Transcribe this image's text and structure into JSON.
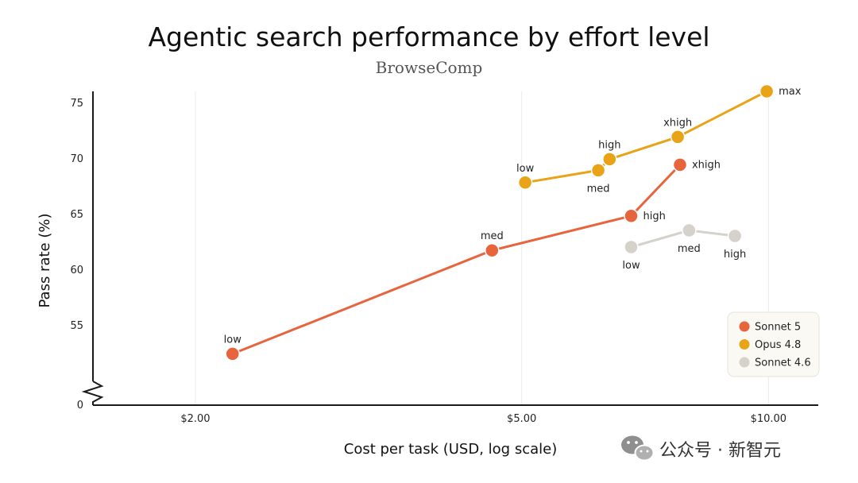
{
  "chart_data": {
    "type": "line",
    "title": "Agentic search performance by effort level",
    "subtitle": "BrowseComp",
    "xlabel": "Cost per task (USD, log scale)",
    "ylabel": "Pass rate (%)",
    "x_scale": "log",
    "xlim": [
      1.5,
      11.5
    ],
    "ylim": [
      50.5,
      76
    ],
    "x_ticks": [
      2,
      5,
      10
    ],
    "x_tick_labels": [
      "$2.00",
      "$5.00",
      "$10.00"
    ],
    "y_ticks": [
      55,
      60,
      65,
      70,
      75
    ],
    "y_tick_labels": [
      "55",
      "60",
      "65",
      "70",
      "75"
    ],
    "y_axis_break": {
      "label": "0"
    },
    "grid": "vertical lines at x ticks",
    "legend_position": "bottom-right",
    "series": [
      {
        "name": "Sonnet 5",
        "color": "#E8643C",
        "points": [
          {
            "x": 2.22,
            "y": 52.4,
            "label": "low",
            "label_pos": "above"
          },
          {
            "x": 4.6,
            "y": 61.7,
            "label": "med",
            "label_pos": "above"
          },
          {
            "x": 6.8,
            "y": 64.8,
            "label": "high",
            "label_pos": "right"
          },
          {
            "x": 7.8,
            "y": 69.4,
            "label": "xhigh",
            "label_pos": "right"
          }
        ]
      },
      {
        "name": "Opus 4.8",
        "color": "#E8A317",
        "points": [
          {
            "x": 5.05,
            "y": 67.8,
            "label": "low",
            "label_pos": "above"
          },
          {
            "x": 6.2,
            "y": 68.9,
            "label": "med",
            "label_pos": "below"
          },
          {
            "x": 6.4,
            "y": 69.9,
            "label": "high",
            "label_pos": "above"
          },
          {
            "x": 7.75,
            "y": 71.9,
            "label": "xhigh",
            "label_pos": "above"
          },
          {
            "x": 9.95,
            "y": 76.0,
            "label": "max",
            "label_pos": "right"
          }
        ]
      },
      {
        "name": "Sonnet 4.6",
        "color": "#D4D2CA",
        "points": [
          {
            "x": 6.8,
            "y": 62.0,
            "label": "low",
            "label_pos": "below"
          },
          {
            "x": 8.0,
            "y": 63.5,
            "label": "med",
            "label_pos": "below"
          },
          {
            "x": 9.1,
            "y": 63.0,
            "label": "high",
            "label_pos": "below"
          }
        ]
      }
    ]
  },
  "watermark": {
    "text": "公众号 · 新智元",
    "icon": "wechat-icon"
  }
}
